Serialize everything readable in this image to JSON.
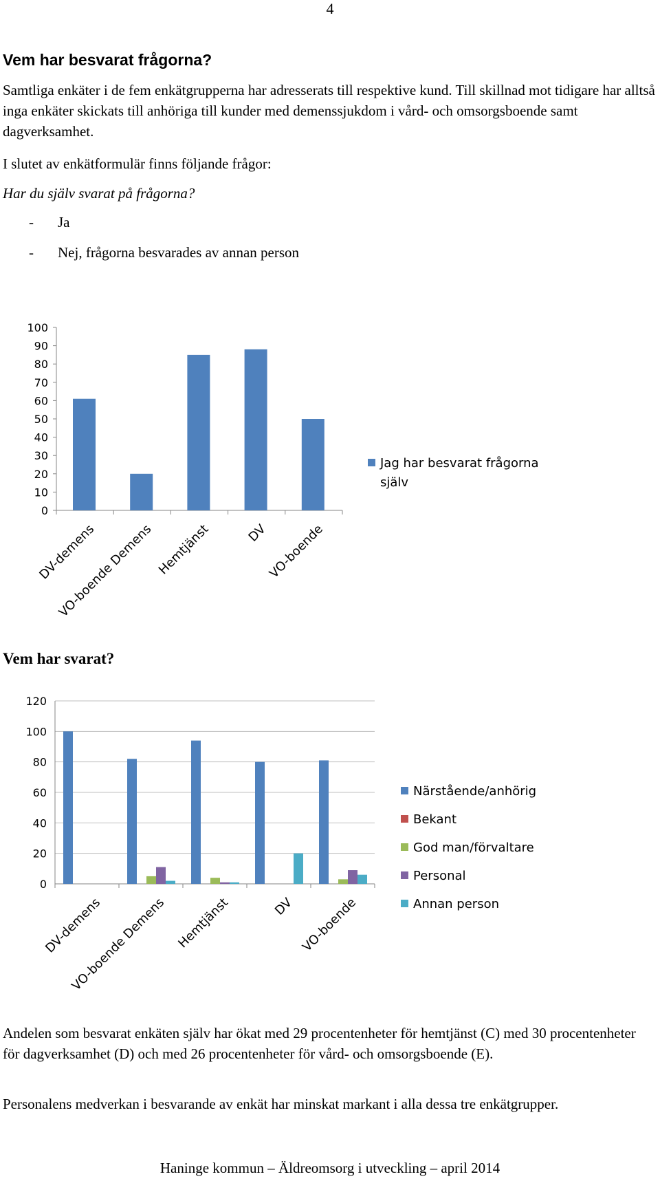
{
  "page": {
    "number": "4",
    "heading": "Vem har besvarat frågorna?",
    "paragraph1": "Samtliga enkäter i de fem enkätgrupperna har adresserats till respektive kund. Till skillnad mot tidigare har alltså inga enkäter skickats till anhöriga till kunder med demenssjukdom i vård- och omsorgsboende samt dagverksamhet.",
    "paragraph2": "I slutet av enkätformulär finns följande frågor:",
    "question": "Har du själv svarat på frågorna?",
    "options": [
      "Ja",
      "Nej, frågorna besvarades av annan person"
    ],
    "dash": "-",
    "heading2": "Vem har svarat?",
    "paragraph3": "Andelen som besvarat enkäten själv har ökat med 29 procentenheter för hemtjänst (C) med 30 procentenheter för dagverksamhet (D) och med 26 procentenheter för vård- och omsorgsboende (E).",
    "paragraph4": "Personalens medverkan i besvarande av enkät har minskat markant i alla dessa tre enkätgrupper.",
    "footer": "Haninge kommun – Äldreomsorg i utveckling – april 2014"
  },
  "chart_data": [
    {
      "type": "bar",
      "title": "",
      "xlabel": "",
      "ylabel": "",
      "categories": [
        "DV-demens",
        "VO-boende Demens",
        "Hemtjänst",
        "DV",
        "VO-boende"
      ],
      "series": [
        {
          "name": "Jag har besvarat frågorna själv",
          "values": [
            61,
            20,
            85,
            88,
            50
          ],
          "color": "#4f81bd"
        }
      ],
      "ylim": [
        0,
        100
      ],
      "yticks": [
        0,
        10,
        20,
        30,
        40,
        50,
        60,
        70,
        80,
        90,
        100
      ],
      "grid": false,
      "legend": "right"
    },
    {
      "type": "bar",
      "title": "",
      "xlabel": "",
      "ylabel": "",
      "categories": [
        "DV-demens",
        "VO-boende Demens",
        "Hemtjänst",
        "DV",
        "VO-boende"
      ],
      "series": [
        {
          "name": "Närstående/anhörig",
          "values": [
            100,
            82,
            94,
            80,
            81
          ],
          "color": "#4f81bd"
        },
        {
          "name": "Bekant",
          "values": [
            0,
            0,
            0,
            0,
            0
          ],
          "color": "#c0504d"
        },
        {
          "name": "God man/förvaltare",
          "values": [
            0,
            5,
            4,
            0,
            3
          ],
          "color": "#9bbb59"
        },
        {
          "name": "Personal",
          "values": [
            0,
            11,
            1,
            0,
            9
          ],
          "color": "#8064a2"
        },
        {
          "name": "Annan person",
          "values": [
            0,
            2,
            1,
            20,
            6
          ],
          "color": "#4bacc6"
        }
      ],
      "ylim": [
        0,
        120
      ],
      "yticks": [
        0,
        20,
        40,
        60,
        80,
        100,
        120
      ],
      "grid": true,
      "legend": "right"
    }
  ]
}
